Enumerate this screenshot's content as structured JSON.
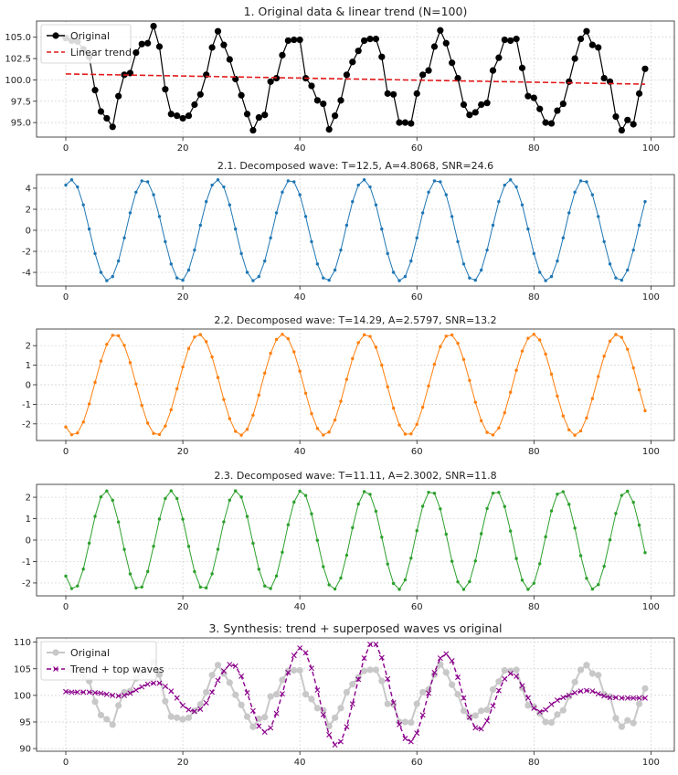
{
  "chart_data": [
    {
      "type": "line",
      "title": "1. Original data & linear trend (N=100)",
      "xlim": [
        -5,
        104
      ],
      "ylim": [
        93.3,
        106.9
      ],
      "x_ticks": [
        0,
        20,
        40,
        60,
        80,
        100
      ],
      "y_ticks": [
        95.0,
        97.5,
        100.0,
        102.5,
        105.0
      ],
      "y_tick_labels": [
        "95.0",
        "97.5",
        "100.0",
        "102.5",
        "105.0"
      ],
      "grid": true,
      "legend": "top-left",
      "series": [
        {
          "name": "Original",
          "color": "#000000",
          "style": "solid",
          "marker": "circle",
          "values": [
            104.9,
            104.6,
            104.5,
            103.6,
            102.7,
            98.8,
            96.3,
            95.5,
            94.5,
            98.1,
            100.6,
            100.8,
            103.2,
            104.2,
            104.3,
            106.3,
            103.9,
            98.9,
            96.0,
            95.8,
            95.5,
            95.8,
            97.1,
            98.3,
            100.6,
            103.8,
            105.7,
            104.1,
            102.4,
            100.1,
            98.2,
            96.0,
            94.1,
            95.6,
            95.9,
            99.8,
            100.2,
            102.9,
            104.6,
            104.7,
            104.7,
            100.2,
            99.3,
            97.6,
            97.2,
            94.2,
            95.8,
            97.6,
            100.6,
            102.1,
            103.4,
            104.6,
            104.8,
            104.8,
            102.7,
            98.4,
            98.3,
            95.0,
            95.0,
            94.9,
            98.4,
            100.6,
            101.1,
            103.9,
            105.8,
            104.3,
            102.0,
            100.2,
            97.1,
            95.9,
            96.2,
            97.1,
            97.3,
            101.1,
            102.6,
            104.7,
            104.6,
            104.8,
            101.4,
            98.1,
            97.9,
            96.6,
            95.0,
            94.9,
            96.4,
            97.2,
            99.8,
            102.5,
            104.8,
            105.7,
            104.1,
            103.8,
            100.2,
            99.8,
            95.7,
            94.1,
            95.3,
            94.8,
            98.4,
            101.3
          ]
        },
        {
          "name": "Linear trend",
          "color": "#e41a1c",
          "style": "dashed",
          "line": [
            [
              0,
              100.7
            ],
            [
              99,
              99.5
            ]
          ]
        }
      ]
    },
    {
      "type": "line",
      "title": "2.1. Decomposed wave: T=12.5, A=4.8068, SNR=24.6",
      "xlim": [
        -5,
        104
      ],
      "ylim": [
        -5.3,
        5.3
      ],
      "x_ticks": [
        0,
        20,
        40,
        60,
        80,
        100
      ],
      "y_ticks": [
        -4,
        -2,
        0,
        2,
        4
      ],
      "y_tick_labels": [
        "-4",
        "-2",
        "0",
        "2",
        "4"
      ],
      "grid": true,
      "series": [
        {
          "name": "",
          "color": "#1f77b4",
          "style": "solid",
          "marker": "dot",
          "period": 12.5,
          "amplitude": 4.8068,
          "phase": 2.2
        }
      ]
    },
    {
      "type": "line",
      "title": "2.2. Decomposed wave: T=14.29, A=2.5797, SNR=13.2",
      "xlim": [
        -5,
        104
      ],
      "ylim": [
        -2.85,
        2.85
      ],
      "x_ticks": [
        0,
        20,
        40,
        60,
        80,
        100
      ],
      "y_ticks": [
        -2,
        -1,
        0,
        1,
        2
      ],
      "y_tick_labels": [
        "-2",
        "-1",
        "0",
        "1",
        "2"
      ],
      "grid": true,
      "series": [
        {
          "name": "",
          "color": "#ff7f0e",
          "style": "solid",
          "marker": "dot",
          "period": 14.29,
          "amplitude": 2.5797,
          "phase": 9.4
        }
      ]
    },
    {
      "type": "line",
      "title": "2.3. Decomposed wave: T=11.11, A=2.3002, SNR=11.8",
      "xlim": [
        -5,
        104
      ],
      "ylim": [
        -2.6,
        2.6
      ],
      "x_ticks": [
        0,
        20,
        40,
        60,
        80,
        100
      ],
      "y_ticks": [
        -2,
        -1,
        0,
        1,
        2
      ],
      "y_tick_labels": [
        "-2",
        "-1",
        "0",
        "1",
        "2"
      ],
      "grid": true,
      "series": [
        {
          "name": "",
          "color": "#2ca02c",
          "style": "solid",
          "marker": "dot",
          "period": 11.11,
          "amplitude": 2.3002,
          "phase": 7.0
        }
      ]
    },
    {
      "type": "line",
      "title": "3. Synthesis: trend + superposed waves vs original",
      "xlim": [
        -5,
        104
      ],
      "ylim": [
        89.5,
        110.8
      ],
      "x_ticks": [
        0,
        20,
        40,
        60,
        80,
        100
      ],
      "y_ticks": [
        90,
        95,
        100,
        105,
        110
      ],
      "y_tick_labels": [
        "90",
        "95",
        "100",
        "105",
        "110"
      ],
      "grid": true,
      "legend": "top-left",
      "series": [
        {
          "name": "Original",
          "color": "#c8c8c8",
          "style": "solid",
          "marker": "circle",
          "same_as": "chart_data.0.series.0.values"
        },
        {
          "name": "Trend + top waves",
          "color": "#8b008b",
          "style": "dashed",
          "marker": "x",
          "values": [
            100.7,
            100.6,
            100.6,
            100.6,
            100.6,
            100.5,
            100.4,
            100.2,
            100.0,
            99.9,
            100.0,
            100.4,
            101.0,
            101.6,
            102.1,
            102.3,
            102.3,
            101.7,
            100.8,
            99.5,
            98.1,
            97.3,
            97.0,
            97.4,
            98.6,
            100.6,
            102.8,
            104.6,
            105.8,
            105.5,
            103.6,
            100.5,
            97.1,
            94.2,
            93.1,
            93.9,
            96.6,
            100.3,
            104.3,
            107.5,
            108.9,
            108.0,
            105.1,
            101.0,
            96.4,
            92.6,
            90.7,
            91.3,
            94.1,
            98.4,
            103.0,
            107.0,
            109.6,
            109.6,
            107.1,
            103.1,
            98.6,
            94.5,
            91.9,
            91.3,
            92.9,
            96.3,
            100.4,
            104.3,
            107.0,
            107.8,
            106.5,
            103.4,
            99.5,
            95.9,
            93.9,
            93.7,
            95.2,
            98.0,
            100.9,
            103.1,
            104.1,
            103.6,
            101.8,
            99.5,
            97.6,
            96.9,
            97.3,
            98.3,
            99.1,
            99.6,
            100.0,
            100.5,
            100.8,
            100.9,
            100.8,
            100.3,
            99.9,
            99.6,
            99.6,
            99.5,
            99.5,
            99.5,
            99.5,
            99.5
          ]
        }
      ]
    }
  ]
}
